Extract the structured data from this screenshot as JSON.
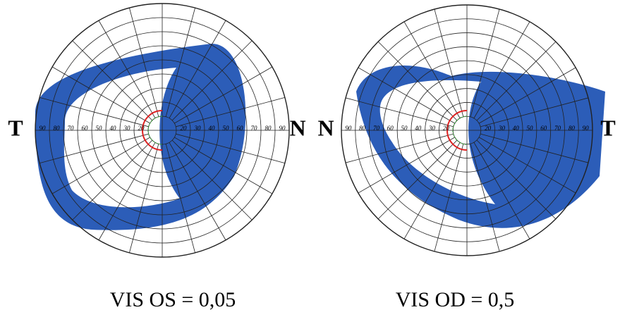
{
  "left_field": {
    "temporal_label": "T",
    "nasal_label": "N",
    "scale_left": [
      "90",
      "80",
      "70",
      "60",
      "50",
      "40",
      "30",
      "20"
    ],
    "scale_right": [
      "20",
      "30",
      "40",
      "50",
      "60",
      "70",
      "80",
      "90"
    ],
    "caption": "VIS OS = 0,05"
  },
  "right_field": {
    "nasal_label": "N",
    "temporal_label": "T",
    "scale_left": [
      "90",
      "80",
      "70",
      "60",
      "50",
      "40",
      "30",
      "20"
    ],
    "scale_right": [
      "20",
      "30",
      "40",
      "50",
      "60",
      "70",
      "80",
      "90"
    ],
    "caption": "VIS OD = 0,5"
  }
}
